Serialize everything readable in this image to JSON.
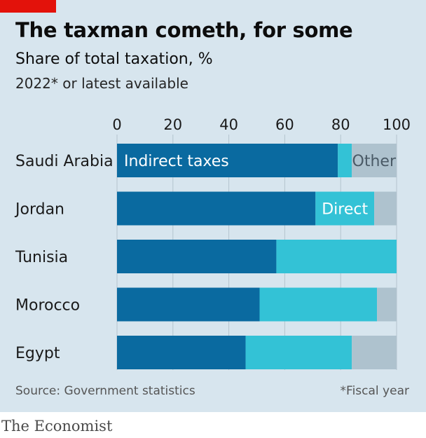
{
  "header": {
    "title": "The taxman cometh, for some",
    "subtitle": "Share of total taxation, %",
    "note": "2022* or latest available"
  },
  "footer": {
    "source": "Source: Government statistics",
    "footnote": "*Fiscal year",
    "brand": "The Economist"
  },
  "colors": {
    "indirect": "#0a6aa0",
    "direct": "#33c2d6",
    "other": "#aec2ce",
    "background": "#d7e5ee",
    "accent": "#e3120b"
  },
  "chart_data": {
    "type": "bar",
    "orientation": "horizontal",
    "stacked": true,
    "categories": [
      "Saudi Arabia",
      "Jordan",
      "Tunisia",
      "Morocco",
      "Egypt"
    ],
    "series": [
      {
        "name": "Indirect taxes",
        "values": [
          79,
          71,
          57,
          51,
          46
        ]
      },
      {
        "name": "Direct",
        "values": [
          5,
          21,
          43,
          42,
          38
        ]
      },
      {
        "name": "Other",
        "values": [
          16,
          8,
          0,
          7,
          16
        ]
      }
    ],
    "xlim": [
      0,
      100
    ],
    "xticks": [
      "0",
      "20",
      "40",
      "60",
      "80",
      "100"
    ],
    "grid": true,
    "legend": "inline labels on bars"
  }
}
